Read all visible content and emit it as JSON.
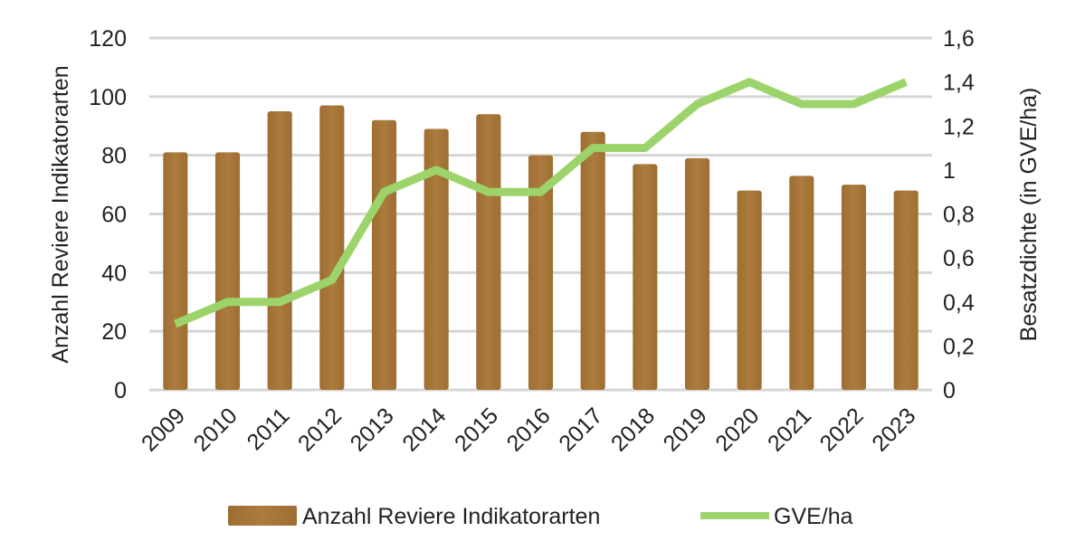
{
  "chart_data": {
    "type": "bar+line",
    "categories": [
      "2009",
      "2010",
      "2011",
      "2012",
      "2013",
      "2014",
      "2015",
      "2016",
      "2017",
      "2018",
      "2019",
      "2020",
      "2021",
      "2022",
      "2023"
    ],
    "series": [
      {
        "name": "Anzahl Reviere Indikatorarten",
        "type": "bar",
        "axis": "left",
        "color": "#A8773A",
        "values": [
          81,
          81,
          95,
          97,
          92,
          89,
          94,
          80,
          88,
          77,
          79,
          68,
          73,
          70,
          68
        ]
      },
      {
        "name": "GVE/ha",
        "type": "line",
        "axis": "right",
        "color": "#9CD46B",
        "values": [
          0.3,
          0.4,
          0.4,
          0.5,
          0.9,
          1.0,
          0.9,
          0.9,
          1.1,
          1.1,
          1.3,
          1.4,
          1.3,
          1.3,
          1.4
        ]
      }
    ],
    "ylabel": "Anzahl Reviere Indikatorarten",
    "y2label": "Besatzdichte (in GVE/ha)",
    "ylim": [
      0,
      120
    ],
    "y2lim": [
      0,
      1.6
    ],
    "yticks": [
      "0",
      "20",
      "40",
      "60",
      "80",
      "100",
      "120"
    ],
    "y2ticks": [
      "0",
      "0,2",
      "0,4",
      "0,6",
      "0,8",
      "1",
      "1,2",
      "1,4",
      "1,6"
    ],
    "grid": true,
    "legend": "bottom"
  }
}
